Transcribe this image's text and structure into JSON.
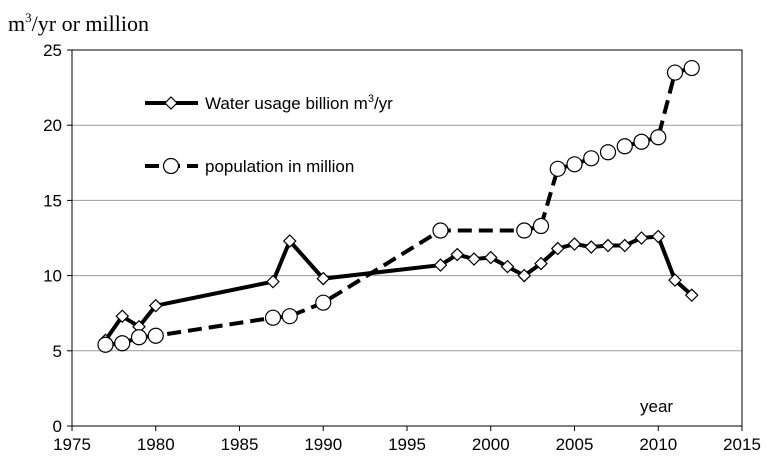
{
  "chart_data": {
    "type": "line",
    "ylabel_parts": [
      "m",
      "3",
      "/yr or million"
    ],
    "xlabel": "year",
    "xlim": [
      1975,
      2015
    ],
    "ylim": [
      0,
      25
    ],
    "xticks": [
      1975,
      1980,
      1985,
      1990,
      1995,
      2000,
      2005,
      2010,
      2015
    ],
    "yticks": [
      0,
      5,
      10,
      15,
      20,
      25
    ],
    "grid": "horizontal",
    "legend_position": "top-left",
    "series": [
      {
        "name_parts": [
          "Water usage billion m",
          "3",
          "/yr"
        ],
        "style": "solid",
        "marker": "diamond",
        "color": "#000000",
        "points": [
          [
            1977,
            5.7
          ],
          [
            1978,
            7.3
          ],
          [
            1979,
            6.6
          ],
          [
            1980,
            8.0
          ],
          [
            1987,
            9.6
          ],
          [
            1988,
            12.3
          ],
          [
            1990,
            9.8
          ],
          [
            1997,
            10.7
          ],
          [
            1998,
            11.4
          ],
          [
            1999,
            11.1
          ],
          [
            2000,
            11.2
          ],
          [
            2001,
            10.6
          ],
          [
            2002,
            10.0
          ],
          [
            2003,
            10.8
          ],
          [
            2004,
            11.8
          ],
          [
            2005,
            12.1
          ],
          [
            2006,
            11.9
          ],
          [
            2007,
            12.0
          ],
          [
            2008,
            12.0
          ],
          [
            2009,
            12.5
          ],
          [
            2010,
            12.6
          ],
          [
            2011,
            9.7
          ],
          [
            2012,
            8.7
          ]
        ]
      },
      {
        "name": "population in million",
        "style": "dashed",
        "marker": "circle",
        "color": "#000000",
        "points": [
          [
            1977,
            5.4
          ],
          [
            1978,
            5.5
          ],
          [
            1979,
            5.9
          ],
          [
            1980,
            6.0
          ],
          [
            1987,
            7.2
          ],
          [
            1988,
            7.3
          ],
          [
            1990,
            8.2
          ],
          [
            1997,
            13.0
          ],
          [
            2002,
            13.0
          ],
          [
            2003,
            13.3
          ],
          [
            2004,
            17.1
          ],
          [
            2005,
            17.4
          ],
          [
            2006,
            17.8
          ],
          [
            2007,
            18.2
          ],
          [
            2008,
            18.6
          ],
          [
            2009,
            18.9
          ],
          [
            2010,
            19.2
          ],
          [
            2011,
            23.5
          ],
          [
            2012,
            23.8
          ]
        ]
      }
    ]
  }
}
